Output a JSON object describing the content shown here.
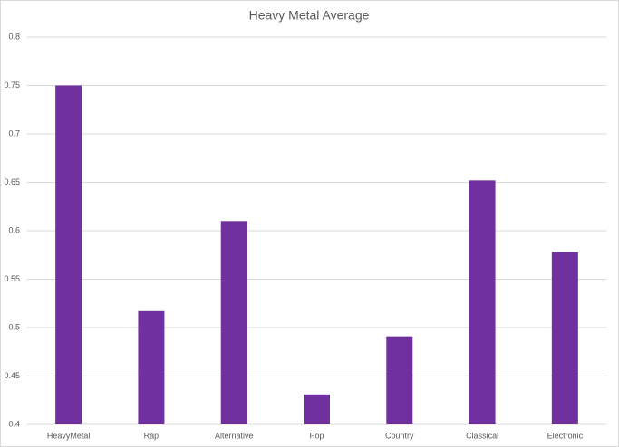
{
  "chart_data": {
    "type": "bar",
    "title": "Heavy Metal Average",
    "categories": [
      "HeavyMetal",
      "Rap",
      "Alternative",
      "Pop",
      "Country",
      "Classical",
      "Electronic"
    ],
    "values": [
      0.75,
      0.517,
      0.61,
      0.431,
      0.491,
      0.652,
      0.578
    ],
    "color": "#7030a0",
    "ylim": [
      0.4,
      0.8
    ],
    "yticks": [
      0.4,
      0.45,
      0.5,
      0.55,
      0.6,
      0.65,
      0.7,
      0.75,
      0.8
    ],
    "grid": true
  }
}
